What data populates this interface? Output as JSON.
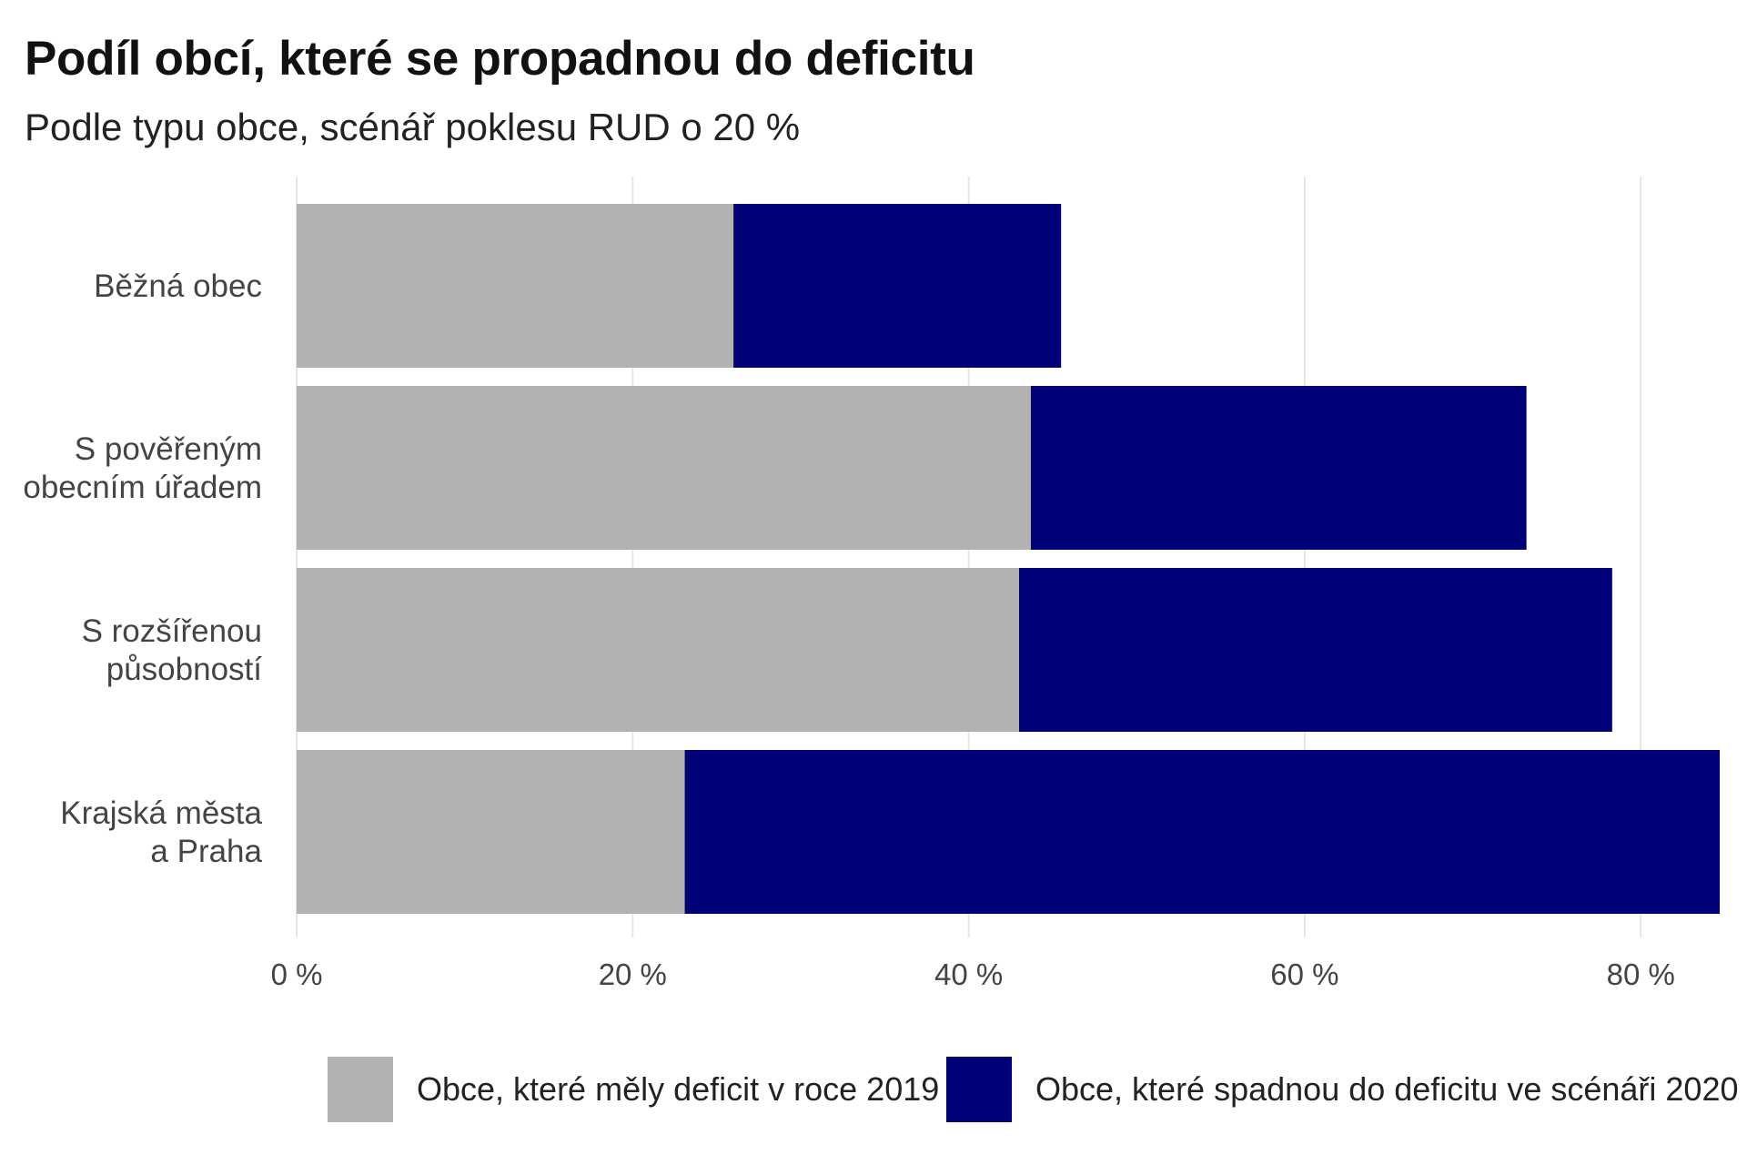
{
  "title": "Podíl obcí, které se propadnou do deficitu",
  "subtitle": "Podle typu obce, scénář poklesu RUD o 20 %",
  "colors": {
    "deficit_2019": "#b2b2b2",
    "deficit_2020": "#000077",
    "grid": "#e6e6e6"
  },
  "chart_data": {
    "type": "bar",
    "orientation": "horizontal",
    "stacked": true,
    "categories": [
      [
        "Běžná obec"
      ],
      [
        "S pověřeným",
        "obecním úřadem"
      ],
      [
        "S rozšířenou",
        "působností"
      ],
      [
        "Krajská města",
        "a Praha"
      ]
    ],
    "series": [
      {
        "name": "Obce, které měly deficit v roce 2019",
        "values": [
          26.0,
          43.7,
          43.0,
          23.1
        ]
      },
      {
        "name": "Obce, které spadnou do deficitu ve scénáři 2020",
        "values": [
          19.5,
          29.5,
          35.3,
          61.6
        ]
      }
    ],
    "x_ticks": [
      "0 %",
      "20 %",
      "40 %",
      "60 %",
      "80 %"
    ],
    "x_tick_values": [
      0,
      20,
      40,
      60,
      80
    ],
    "xlim": [
      0,
      84.7
    ],
    "grid": true,
    "legend_position": "bottom"
  }
}
